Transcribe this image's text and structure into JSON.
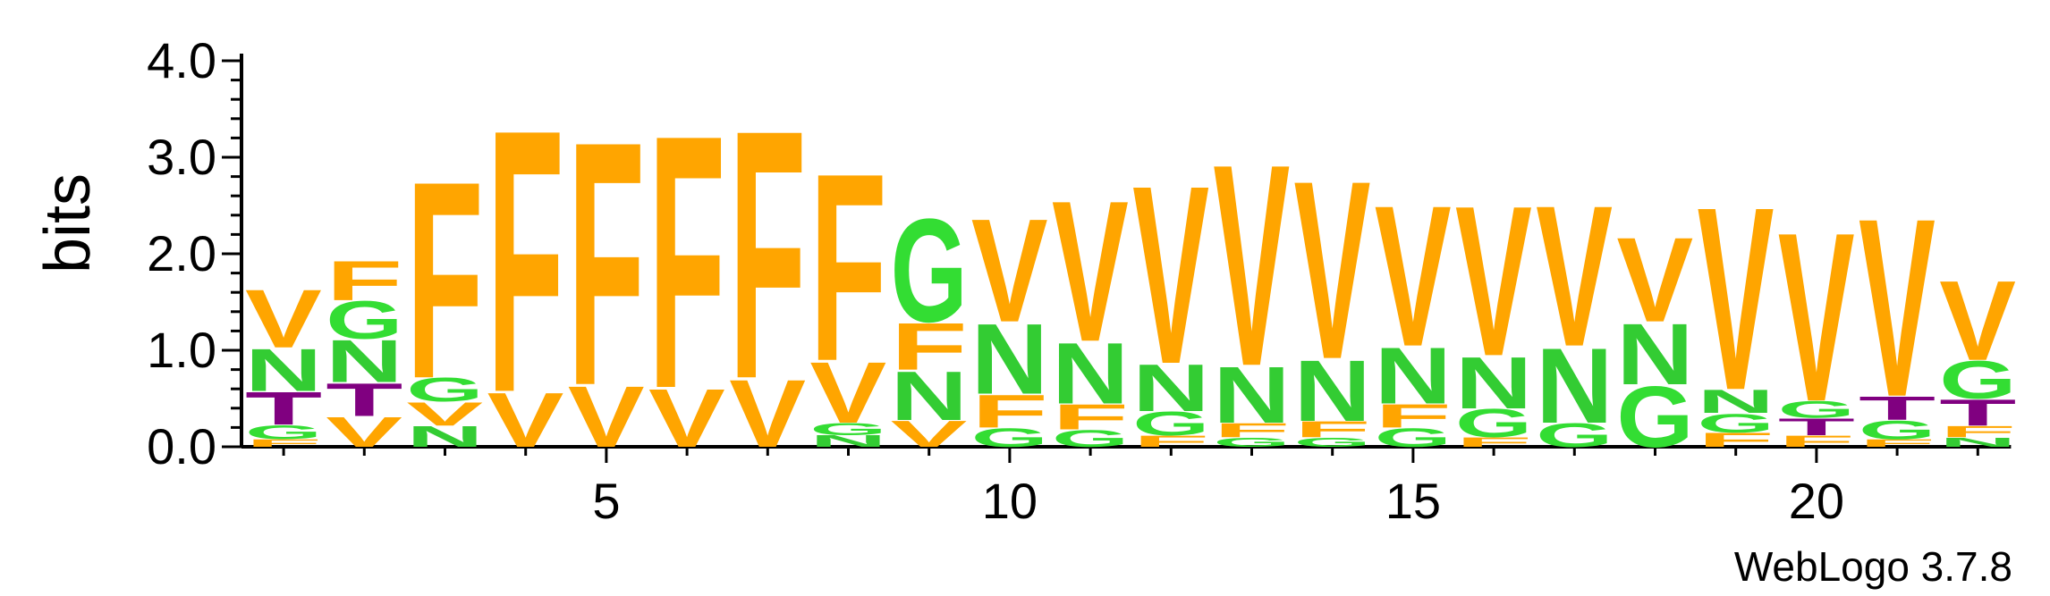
{
  "chart_data": {
    "type": "sequence-logo",
    "ylabel": "bits",
    "ylim": [
      0,
      4.0
    ],
    "y_ticks": [
      "0.0",
      "1.0",
      "2.0",
      "3.0",
      "4.0"
    ],
    "x_range": [
      1,
      22
    ],
    "x_ticks": [
      "5",
      "10",
      "15",
      "20"
    ],
    "credit": "WebLogo 3.7.8",
    "colors": {
      "F": "#ffa500",
      "V": "#ffa500",
      "G": "#33dd33",
      "N": "#33cc33",
      "T": "#800080"
    },
    "positions": [
      {
        "pos": 1,
        "stack": [
          {
            "l": "F",
            "h": 0.08
          },
          {
            "l": "G",
            "h": 0.15
          },
          {
            "l": "T",
            "h": 0.35
          },
          {
            "l": "N",
            "h": 0.45
          },
          {
            "l": "V",
            "h": 0.62
          }
        ]
      },
      {
        "pos": 2,
        "stack": [
          {
            "l": "V",
            "h": 0.32
          },
          {
            "l": "T",
            "h": 0.35
          },
          {
            "l": "N",
            "h": 0.45
          },
          {
            "l": "G",
            "h": 0.4
          },
          {
            "l": "F",
            "h": 0.42
          }
        ]
      },
      {
        "pos": 3,
        "stack": [
          {
            "l": "N",
            "h": 0.22
          },
          {
            "l": "V",
            "h": 0.25
          },
          {
            "l": "G",
            "h": 0.25
          },
          {
            "l": "F",
            "h": 2.1
          }
        ]
      },
      {
        "pos": 4,
        "stack": [
          {
            "l": "V",
            "h": 0.58
          },
          {
            "l": "F",
            "h": 2.8
          }
        ]
      },
      {
        "pos": 5,
        "stack": [
          {
            "l": "V",
            "h": 0.65
          },
          {
            "l": "F",
            "h": 2.6
          }
        ]
      },
      {
        "pos": 6,
        "stack": [
          {
            "l": "V",
            "h": 0.62
          },
          {
            "l": "F",
            "h": 2.7
          }
        ]
      },
      {
        "pos": 7,
        "stack": [
          {
            "l": "V",
            "h": 0.72
          },
          {
            "l": "F",
            "h": 2.65
          }
        ]
      },
      {
        "pos": 8,
        "stack": [
          {
            "l": "N",
            "h": 0.12
          },
          {
            "l": "G",
            "h": 0.13
          },
          {
            "l": "V",
            "h": 0.65
          },
          {
            "l": "F",
            "h": 2.0
          }
        ]
      },
      {
        "pos": 9,
        "stack": [
          {
            "l": "V",
            "h": 0.28
          },
          {
            "l": "N",
            "h": 0.52
          },
          {
            "l": "F",
            "h": 0.5
          },
          {
            "l": "G",
            "h": 1.1
          }
        ]
      },
      {
        "pos": 10,
        "stack": [
          {
            "l": "G",
            "h": 0.2
          },
          {
            "l": "F",
            "h": 0.35
          },
          {
            "l": "N",
            "h": 0.75
          },
          {
            "l": "V",
            "h": 1.1
          }
        ]
      },
      {
        "pos": 11,
        "stack": [
          {
            "l": "G",
            "h": 0.18
          },
          {
            "l": "F",
            "h": 0.27
          },
          {
            "l": "N",
            "h": 0.65
          },
          {
            "l": "V",
            "h": 1.5
          }
        ]
      },
      {
        "pos": 12,
        "stack": [
          {
            "l": "F",
            "h": 0.12
          },
          {
            "l": "G",
            "h": 0.25
          },
          {
            "l": "N",
            "h": 0.5
          },
          {
            "l": "V",
            "h": 1.9
          }
        ]
      },
      {
        "pos": 13,
        "stack": [
          {
            "l": "G",
            "h": 0.1
          },
          {
            "l": "F",
            "h": 0.15
          },
          {
            "l": "N",
            "h": 0.6
          },
          {
            "l": "V",
            "h": 2.15
          }
        ]
      },
      {
        "pos": 14,
        "stack": [
          {
            "l": "G",
            "h": 0.1
          },
          {
            "l": "F",
            "h": 0.17
          },
          {
            "l": "N",
            "h": 0.65
          },
          {
            "l": "V",
            "h": 1.9
          }
        ]
      },
      {
        "pos": 15,
        "stack": [
          {
            "l": "G",
            "h": 0.2
          },
          {
            "l": "F",
            "h": 0.25
          },
          {
            "l": "N",
            "h": 0.6
          },
          {
            "l": "V",
            "h": 1.5
          }
        ]
      },
      {
        "pos": 16,
        "stack": [
          {
            "l": "F",
            "h": 0.1
          },
          {
            "l": "G",
            "h": 0.3
          },
          {
            "l": "N",
            "h": 0.55
          },
          {
            "l": "V",
            "h": 1.6
          }
        ]
      },
      {
        "pos": 17,
        "stack": [
          {
            "l": "G",
            "h": 0.25
          },
          {
            "l": "N",
            "h": 0.8
          },
          {
            "l": "V",
            "h": 1.5
          }
        ]
      },
      {
        "pos": 18,
        "stack": [
          {
            "l": "G",
            "h": 0.65
          },
          {
            "l": "N",
            "h": 0.65
          },
          {
            "l": "V",
            "h": 0.9
          }
        ]
      },
      {
        "pos": 19,
        "stack": [
          {
            "l": "F",
            "h": 0.15
          },
          {
            "l": "G",
            "h": 0.2
          },
          {
            "l": "N",
            "h": 0.25
          },
          {
            "l": "V",
            "h": 1.95
          }
        ]
      },
      {
        "pos": 20,
        "stack": [
          {
            "l": "F",
            "h": 0.12
          },
          {
            "l": "T",
            "h": 0.18
          },
          {
            "l": "G",
            "h": 0.18
          },
          {
            "l": "V",
            "h": 1.8
          }
        ]
      },
      {
        "pos": 21,
        "stack": [
          {
            "l": "F",
            "h": 0.08
          },
          {
            "l": "G",
            "h": 0.2
          },
          {
            "l": "T",
            "h": 0.25
          },
          {
            "l": "V",
            "h": 1.9
          }
        ]
      },
      {
        "pos": 22,
        "stack": [
          {
            "l": "N",
            "h": 0.1
          },
          {
            "l": "F",
            "h": 0.12
          },
          {
            "l": "T",
            "h": 0.28
          },
          {
            "l": "G",
            "h": 0.4
          },
          {
            "l": "V",
            "h": 0.85
          }
        ]
      }
    ]
  }
}
